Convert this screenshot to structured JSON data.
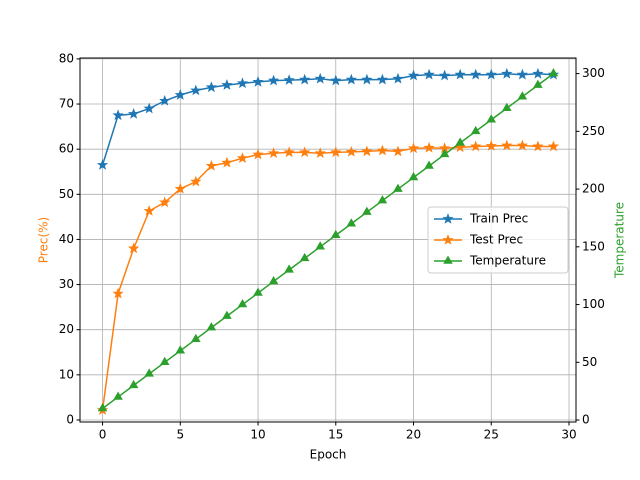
{
  "chart_data": {
    "type": "line",
    "x_label": "Epoch",
    "y_label": "Prec(%)",
    "y2_label": "Temperature",
    "x": [
      0,
      1,
      2,
      3,
      4,
      5,
      6,
      7,
      8,
      9,
      10,
      11,
      12,
      13,
      14,
      15,
      16,
      17,
      18,
      19,
      20,
      21,
      22,
      23,
      24,
      25,
      26,
      27,
      28,
      29
    ],
    "series": [
      {
        "name": "Train Prec",
        "color": "#1f77b4",
        "marker": "star",
        "values": [
          56.5,
          67.5,
          67.8,
          69,
          70.7,
          72,
          73,
          73.7,
          74.2,
          74.6,
          74.9,
          75.2,
          75.3,
          75.4,
          75.6,
          75.2,
          75.4,
          75.4,
          75.4,
          75.6,
          76.3,
          76.5,
          76.3,
          76.5,
          76.5,
          76.5,
          76.7,
          76.5,
          76.7,
          76.5
        ]
      },
      {
        "name": "Test Prec",
        "color": "#ff7f0e",
        "marker": "star",
        "values": [
          2.2,
          28,
          38,
          46.3,
          48.2,
          51.2,
          52.8,
          56.3,
          57,
          58,
          58.8,
          59.1,
          59.3,
          59.3,
          59.1,
          59.3,
          59.4,
          59.5,
          59.7,
          59.5,
          60.2,
          60.3,
          60.2,
          60.4,
          60.6,
          60.7,
          60.8,
          60.8,
          60.6,
          60.6
        ]
      },
      {
        "name": "Temperature",
        "color": "#2ca02c",
        "marker": "triangle",
        "axis": "y2",
        "values": [
          10,
          20,
          30,
          40,
          50,
          60,
          70,
          80,
          90,
          100,
          110,
          120,
          130,
          140,
          150,
          160,
          170,
          180,
          190,
          200,
          210,
          220,
          230,
          240,
          250,
          260,
          270,
          280,
          290,
          300
        ]
      }
    ],
    "xlim": [
      -1.45,
      30.45
    ],
    "xticks": [
      0,
      5,
      10,
      15,
      20,
      25,
      30
    ],
    "ylim": [
      -0.45,
      80.2
    ],
    "yticks": [
      0,
      10,
      20,
      30,
      40,
      50,
      60,
      70,
      80
    ],
    "y2lim": [
      -1.7,
      313.5
    ],
    "y2ticks": [
      0,
      50,
      100,
      150,
      200,
      250,
      300
    ],
    "grid": true,
    "legend": "center right",
    "y_label_color": "#ff7f0e",
    "y2_label_color": "#2ca02c"
  }
}
